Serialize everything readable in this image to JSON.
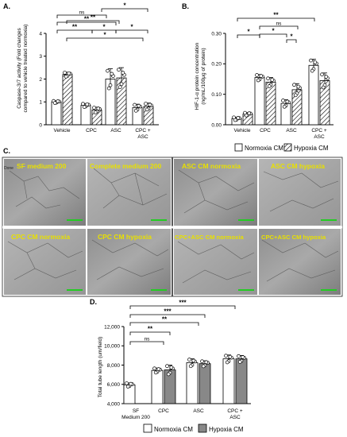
{
  "chart_data": [
    {
      "panel": "A.",
      "type": "bar",
      "ylabel": "Caspase-3/7 activity (Fold changes compared to vehicle treated normoxia)",
      "ylim": [
        0,
        4
      ],
      "yticks": [
        "0",
        "1",
        "2",
        "3",
        "4"
      ],
      "categories": [
        "Vehicle",
        "CPC",
        "ASC",
        "CPC + ASC"
      ],
      "series": [
        {
          "pattern": "white",
          "values": [
            1.0,
            0.85,
            2.0,
            0.75
          ],
          "errors": [
            0.05,
            0.08,
            0.45,
            0.15
          ]
        },
        {
          "pattern": "hatched",
          "values": [
            2.2,
            0.65,
            2.05,
            0.8
          ],
          "errors": [
            0.1,
            0.12,
            0.45,
            0.15
          ]
        }
      ],
      "significance": [
        "ns",
        "**",
        "*",
        "**",
        "**",
        "*",
        "*",
        "*"
      ]
    },
    {
      "panel": "B.",
      "type": "bar",
      "ylabel": "HIF-1-α protein concentration (ng/mL/100μg of protein)",
      "ylim": [
        0,
        0.3
      ],
      "yticks": [
        "0.00",
        "0.10",
        "0.20",
        "0.30"
      ],
      "categories": [
        "Vehicle",
        "CPC",
        "ASC",
        "CPC + ASC"
      ],
      "series": [
        {
          "name": "Normoxia CM",
          "pattern": "white",
          "values": [
            0.02,
            0.155,
            0.07,
            0.195
          ],
          "errors": [
            0.005,
            0.01,
            0.012,
            0.02
          ]
        },
        {
          "name": "Hypoxia CM",
          "pattern": "hatched",
          "values": [
            0.035,
            0.14,
            0.115,
            0.145
          ],
          "errors": [
            0.005,
            0.015,
            0.02,
            0.025
          ]
        }
      ],
      "significance": [
        "**",
        "*",
        "ns",
        "*",
        "*"
      ]
    },
    {
      "panel": "D.",
      "type": "bar",
      "ylabel": "Total tube length (um/field)",
      "ylim": [
        4000,
        12000
      ],
      "yticks": [
        "4,000",
        "6,000",
        "8,000",
        "10,000",
        "12,000"
      ],
      "categories": [
        "SF Medium 200",
        "CPC",
        "ASC",
        "CPC + ASC"
      ],
      "series": [
        {
          "name": "Normoxia CM",
          "color": "#ffffff",
          "values": [
            5950,
            7450,
            8250,
            8650
          ],
          "errors": [
            200,
            250,
            400,
            400
          ]
        },
        {
          "name": "Hypoxia CM",
          "color": "#888888",
          "values": null,
          "values_list": [
            7500,
            8150,
            8650
          ],
          "errors": [
            500,
            300,
            350
          ]
        }
      ],
      "significance": [
        "***",
        "***",
        "**",
        "**",
        "ns"
      ]
    }
  ],
  "panelC": {
    "letter": "C.",
    "captions": [
      "SF medium 200",
      "Complete medium 200",
      "ASC CM normoxia",
      "ASC CM hypoxia",
      "CPC CM normoxia",
      "CPC CM hypoxia",
      "CPC+ASC CM normoxia",
      "CPC+ASC CM hypoxia"
    ],
    "scalebar_color": "#22cc22",
    "caption_color": "#e8e000"
  },
  "labels": {
    "A": "A.",
    "B": "B.",
    "D": "D.",
    "xa": [
      "Vehicle",
      "CPC",
      "ASC",
      "CPC +",
      "ASC"
    ],
    "xd": [
      "SF",
      "Medium 200",
      "CPC",
      "ASC",
      "CPC +",
      "ASC"
    ],
    "legend_normoxia": "Normoxia CM",
    "legend_hypoxia": "Hypoxia CM",
    "ns": "ns",
    "done": "Done"
  }
}
